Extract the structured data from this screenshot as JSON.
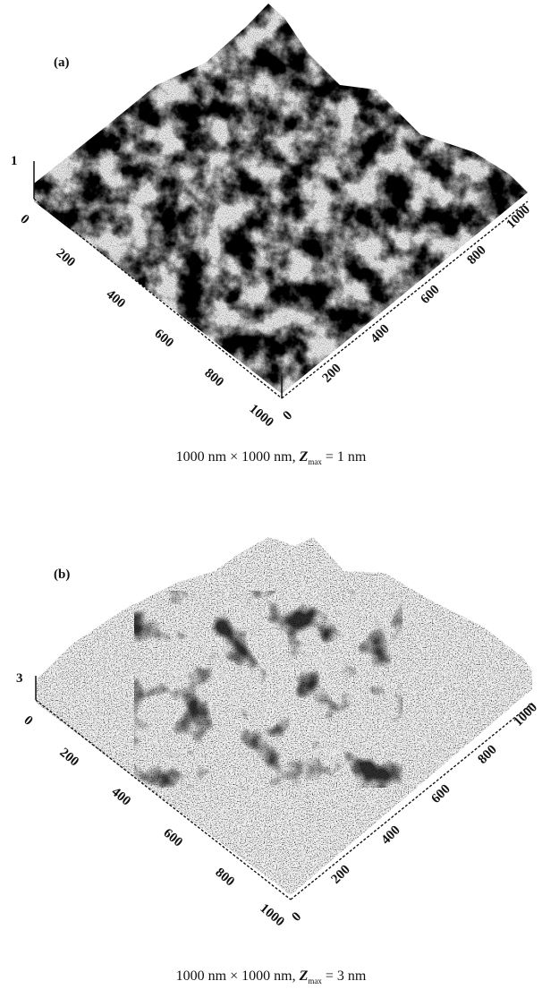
{
  "panels": [
    {
      "label": "(a)",
      "z_max_tick": "1",
      "left_axis_ticks": [
        "0",
        "200",
        "400",
        "600",
        "800",
        "1000"
      ],
      "right_axis_ticks": [
        "0",
        "200",
        "400",
        "600",
        "800",
        "1000"
      ],
      "caption": {
        "prefix": "1000 nm × 1000 nm, ",
        "z_symbol": "Z",
        "z_sub": "max",
        "suffix": " = 1 nm"
      }
    },
    {
      "label": "(b)",
      "z_max_tick": "3",
      "left_axis_ticks": [
        "0",
        "200",
        "400",
        "600",
        "800",
        "1000"
      ],
      "right_axis_ticks": [
        "0",
        "200",
        "400",
        "600",
        "800",
        "1000"
      ],
      "caption": {
        "prefix": "1000 nm × 1000 nm, ",
        "z_symbol": "Z",
        "z_sub": "max",
        "suffix": " = 3 nm"
      }
    }
  ]
}
